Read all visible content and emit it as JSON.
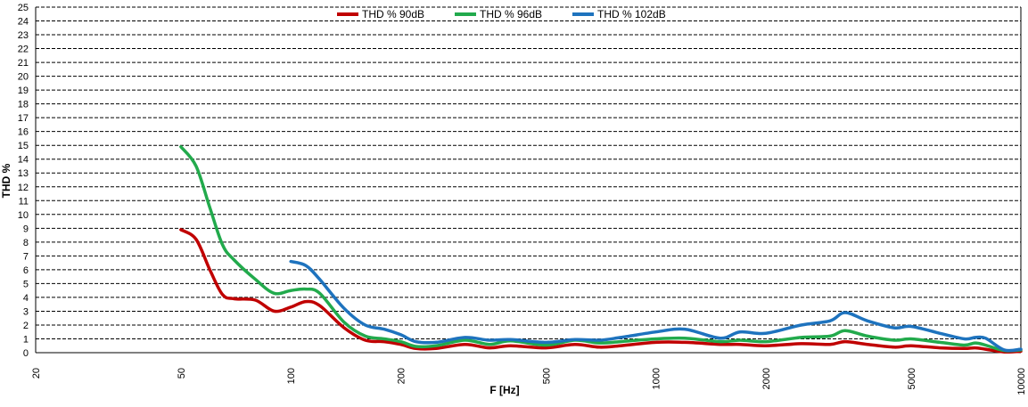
{
  "chart_data": {
    "type": "line",
    "title": "",
    "xlabel": "F [Hz]",
    "ylabel": "THD %",
    "xscale": "log",
    "xlim": [
      20,
      10000
    ],
    "ylim": [
      0,
      25
    ],
    "grid": "horizontal dashed",
    "legend_position": "top-center",
    "x_tick_values": [
      20,
      50,
      100,
      200,
      500,
      1000,
      2000,
      5000,
      10000
    ],
    "x_tick_labels": [
      "20",
      "50",
      "100",
      "200",
      "500",
      "1000",
      "2000",
      "5000",
      "10000"
    ],
    "y_tick_values": [
      0,
      1,
      2,
      3,
      4,
      5,
      6,
      7,
      8,
      9,
      10,
      11,
      12,
      13,
      14,
      15,
      16,
      17,
      18,
      19,
      20,
      21,
      22,
      23,
      24,
      25
    ],
    "y_tick_labels": [
      "0",
      "1",
      "2",
      "3",
      "4",
      "5",
      "6",
      "7",
      "8",
      "9",
      "10",
      "11",
      "12",
      "13",
      "14",
      "15",
      "16",
      "17",
      "18",
      "19",
      "20",
      "21",
      "22",
      "23",
      "24",
      "25"
    ],
    "series": [
      {
        "name": "THD % 90dB",
        "color": "#c00000",
        "x": [
          50,
          55,
          60,
          65,
          70,
          80,
          90,
          100,
          110,
          120,
          140,
          160,
          180,
          200,
          220,
          250,
          300,
          350,
          400,
          500,
          600,
          700,
          800,
          1000,
          1200,
          1500,
          1700,
          2000,
          2500,
          3000,
          3300,
          3800,
          4500,
          5000,
          6000,
          7000,
          7500,
          8000,
          9000,
          10000
        ],
        "y": [
          8.9,
          8.2,
          6.0,
          4.2,
          3.9,
          3.8,
          3.0,
          3.3,
          3.7,
          3.4,
          1.8,
          0.9,
          0.8,
          0.6,
          0.3,
          0.3,
          0.6,
          0.35,
          0.5,
          0.35,
          0.6,
          0.4,
          0.5,
          0.75,
          0.75,
          0.6,
          0.6,
          0.5,
          0.65,
          0.6,
          0.8,
          0.6,
          0.4,
          0.5,
          0.35,
          0.3,
          0.35,
          0.25,
          0.05,
          0.1
        ]
      },
      {
        "name": "THD % 96dB",
        "color": "#22aa4c",
        "x": [
          50,
          55,
          60,
          65,
          70,
          80,
          90,
          100,
          110,
          120,
          140,
          160,
          180,
          200,
          220,
          250,
          300,
          350,
          400,
          500,
          600,
          700,
          800,
          1000,
          1200,
          1500,
          1700,
          2000,
          2500,
          3000,
          3300,
          3800,
          4500,
          5000,
          6000,
          7000,
          7500,
          8000,
          9000,
          10000
        ],
        "y": [
          14.9,
          13.5,
          10.5,
          7.8,
          6.7,
          5.3,
          4.3,
          4.5,
          4.6,
          4.3,
          2.2,
          1.2,
          1.0,
          0.8,
          0.45,
          0.5,
          0.9,
          0.6,
          0.85,
          0.55,
          0.9,
          0.7,
          0.8,
          1.0,
          1.05,
          0.8,
          0.9,
          0.8,
          1.1,
          1.2,
          1.6,
          1.2,
          0.9,
          1.0,
          0.75,
          0.55,
          0.7,
          0.55,
          0.15,
          0.2
        ]
      },
      {
        "name": "THD % 102dB",
        "color": "#1e73be",
        "x": [
          100,
          110,
          120,
          140,
          160,
          180,
          200,
          220,
          250,
          300,
          350,
          400,
          500,
          600,
          700,
          800,
          1000,
          1200,
          1500,
          1700,
          2000,
          2500,
          3000,
          3300,
          3800,
          4500,
          5000,
          6000,
          7000,
          7500,
          8000,
          9000,
          10000
        ],
        "y": [
          6.6,
          6.3,
          5.3,
          3.2,
          2.0,
          1.7,
          1.3,
          0.8,
          0.75,
          1.1,
          0.9,
          0.95,
          0.75,
          0.95,
          0.9,
          1.1,
          1.5,
          1.7,
          1.05,
          1.5,
          1.4,
          2.0,
          2.3,
          2.9,
          2.3,
          1.8,
          1.9,
          1.4,
          1.0,
          1.1,
          1.05,
          0.2,
          0.25
        ]
      }
    ]
  }
}
